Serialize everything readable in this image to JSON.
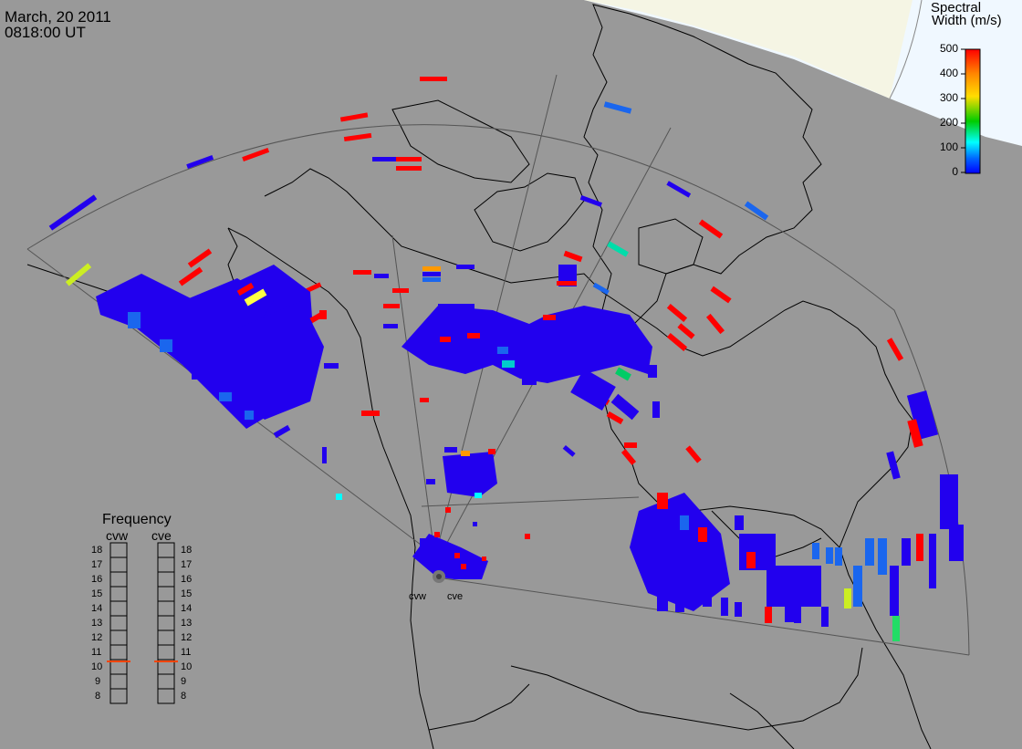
{
  "header": {
    "date": "March, 20 2011",
    "time": "0818:00 UT"
  },
  "colorbar": {
    "title_line1": "Spectral",
    "title_line2": "Width (m/s)",
    "ticks": [
      "500",
      "400",
      "300",
      "200",
      "100",
      "0"
    ],
    "gradient": [
      "#ff0000",
      "#ff8800",
      "#ffdd00",
      "#00cc00",
      "#00ffff",
      "#0066ff",
      "#0000ff"
    ]
  },
  "frequency": {
    "title": "Frequency",
    "radars": [
      "cvw",
      "cve"
    ],
    "levels": [
      "18",
      "17",
      "16",
      "15",
      "14",
      "13",
      "12",
      "11",
      "10",
      "9",
      "8"
    ],
    "current_mhz": 11
  },
  "radar_sites": [
    "cvw",
    "cve"
  ],
  "colors": {
    "background": "#999999",
    "daylight": "#f0f8ff",
    "terminator": "#f5f5e6",
    "low": "#2200ee",
    "high": "#ff0000"
  }
}
